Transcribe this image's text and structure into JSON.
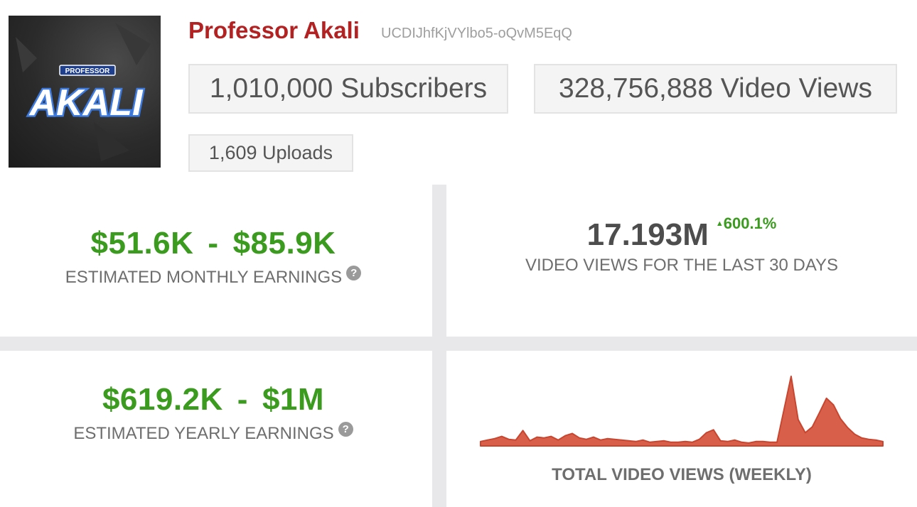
{
  "channel": {
    "name": "Professor Akali",
    "id": "UCDIJhfKjVYlbo5-oQvM5EqQ",
    "avatar_small_text": "PROFESSOR",
    "avatar_big_text": "AKALI"
  },
  "stats": {
    "subscribers": "1,010,000 Subscribers",
    "video_views": "328,756,888 Video Views",
    "uploads": "1,609 Uploads"
  },
  "monthly": {
    "low": "$51.6K",
    "dash": "-",
    "high": "$85.9K",
    "label": "ESTIMATED MONTHLY EARNINGS",
    "help": "?"
  },
  "last30": {
    "views": "17.193M",
    "growth": "600.1%",
    "growth_arrow": "▲",
    "label": "VIDEO VIEWS FOR THE LAST 30 DAYS"
  },
  "yearly": {
    "low": "$619.2K",
    "dash": "-",
    "high": "$1M",
    "label": "ESTIMATED YEARLY EARNINGS",
    "help": "?"
  },
  "weekly_chart_title": "TOTAL VIDEO VIEWS (WEEKLY)",
  "colors": {
    "channel_name": "#b22222",
    "earnings_green": "#3a9b1e",
    "chart_fill": "#d8604a",
    "chart_stroke": "#c8452f",
    "divider": "#e8e8ea"
  },
  "chart_data": {
    "type": "area",
    "title": "TOTAL VIDEO VIEWS (WEEKLY)",
    "xlabel": "",
    "ylabel": "",
    "grid": false,
    "values": [
      6,
      8,
      10,
      13,
      9,
      8,
      21,
      7,
      12,
      11,
      13,
      8,
      14,
      17,
      11,
      9,
      12,
      8,
      10,
      9,
      8,
      7,
      6,
      8,
      5,
      6,
      7,
      5,
      5,
      6,
      5,
      9,
      18,
      22,
      7,
      6,
      8,
      5,
      4,
      6,
      6,
      5,
      5,
      50,
      95,
      36,
      18,
      26,
      45,
      65,
      56,
      37,
      25,
      16,
      11,
      9,
      8,
      6
    ]
  }
}
